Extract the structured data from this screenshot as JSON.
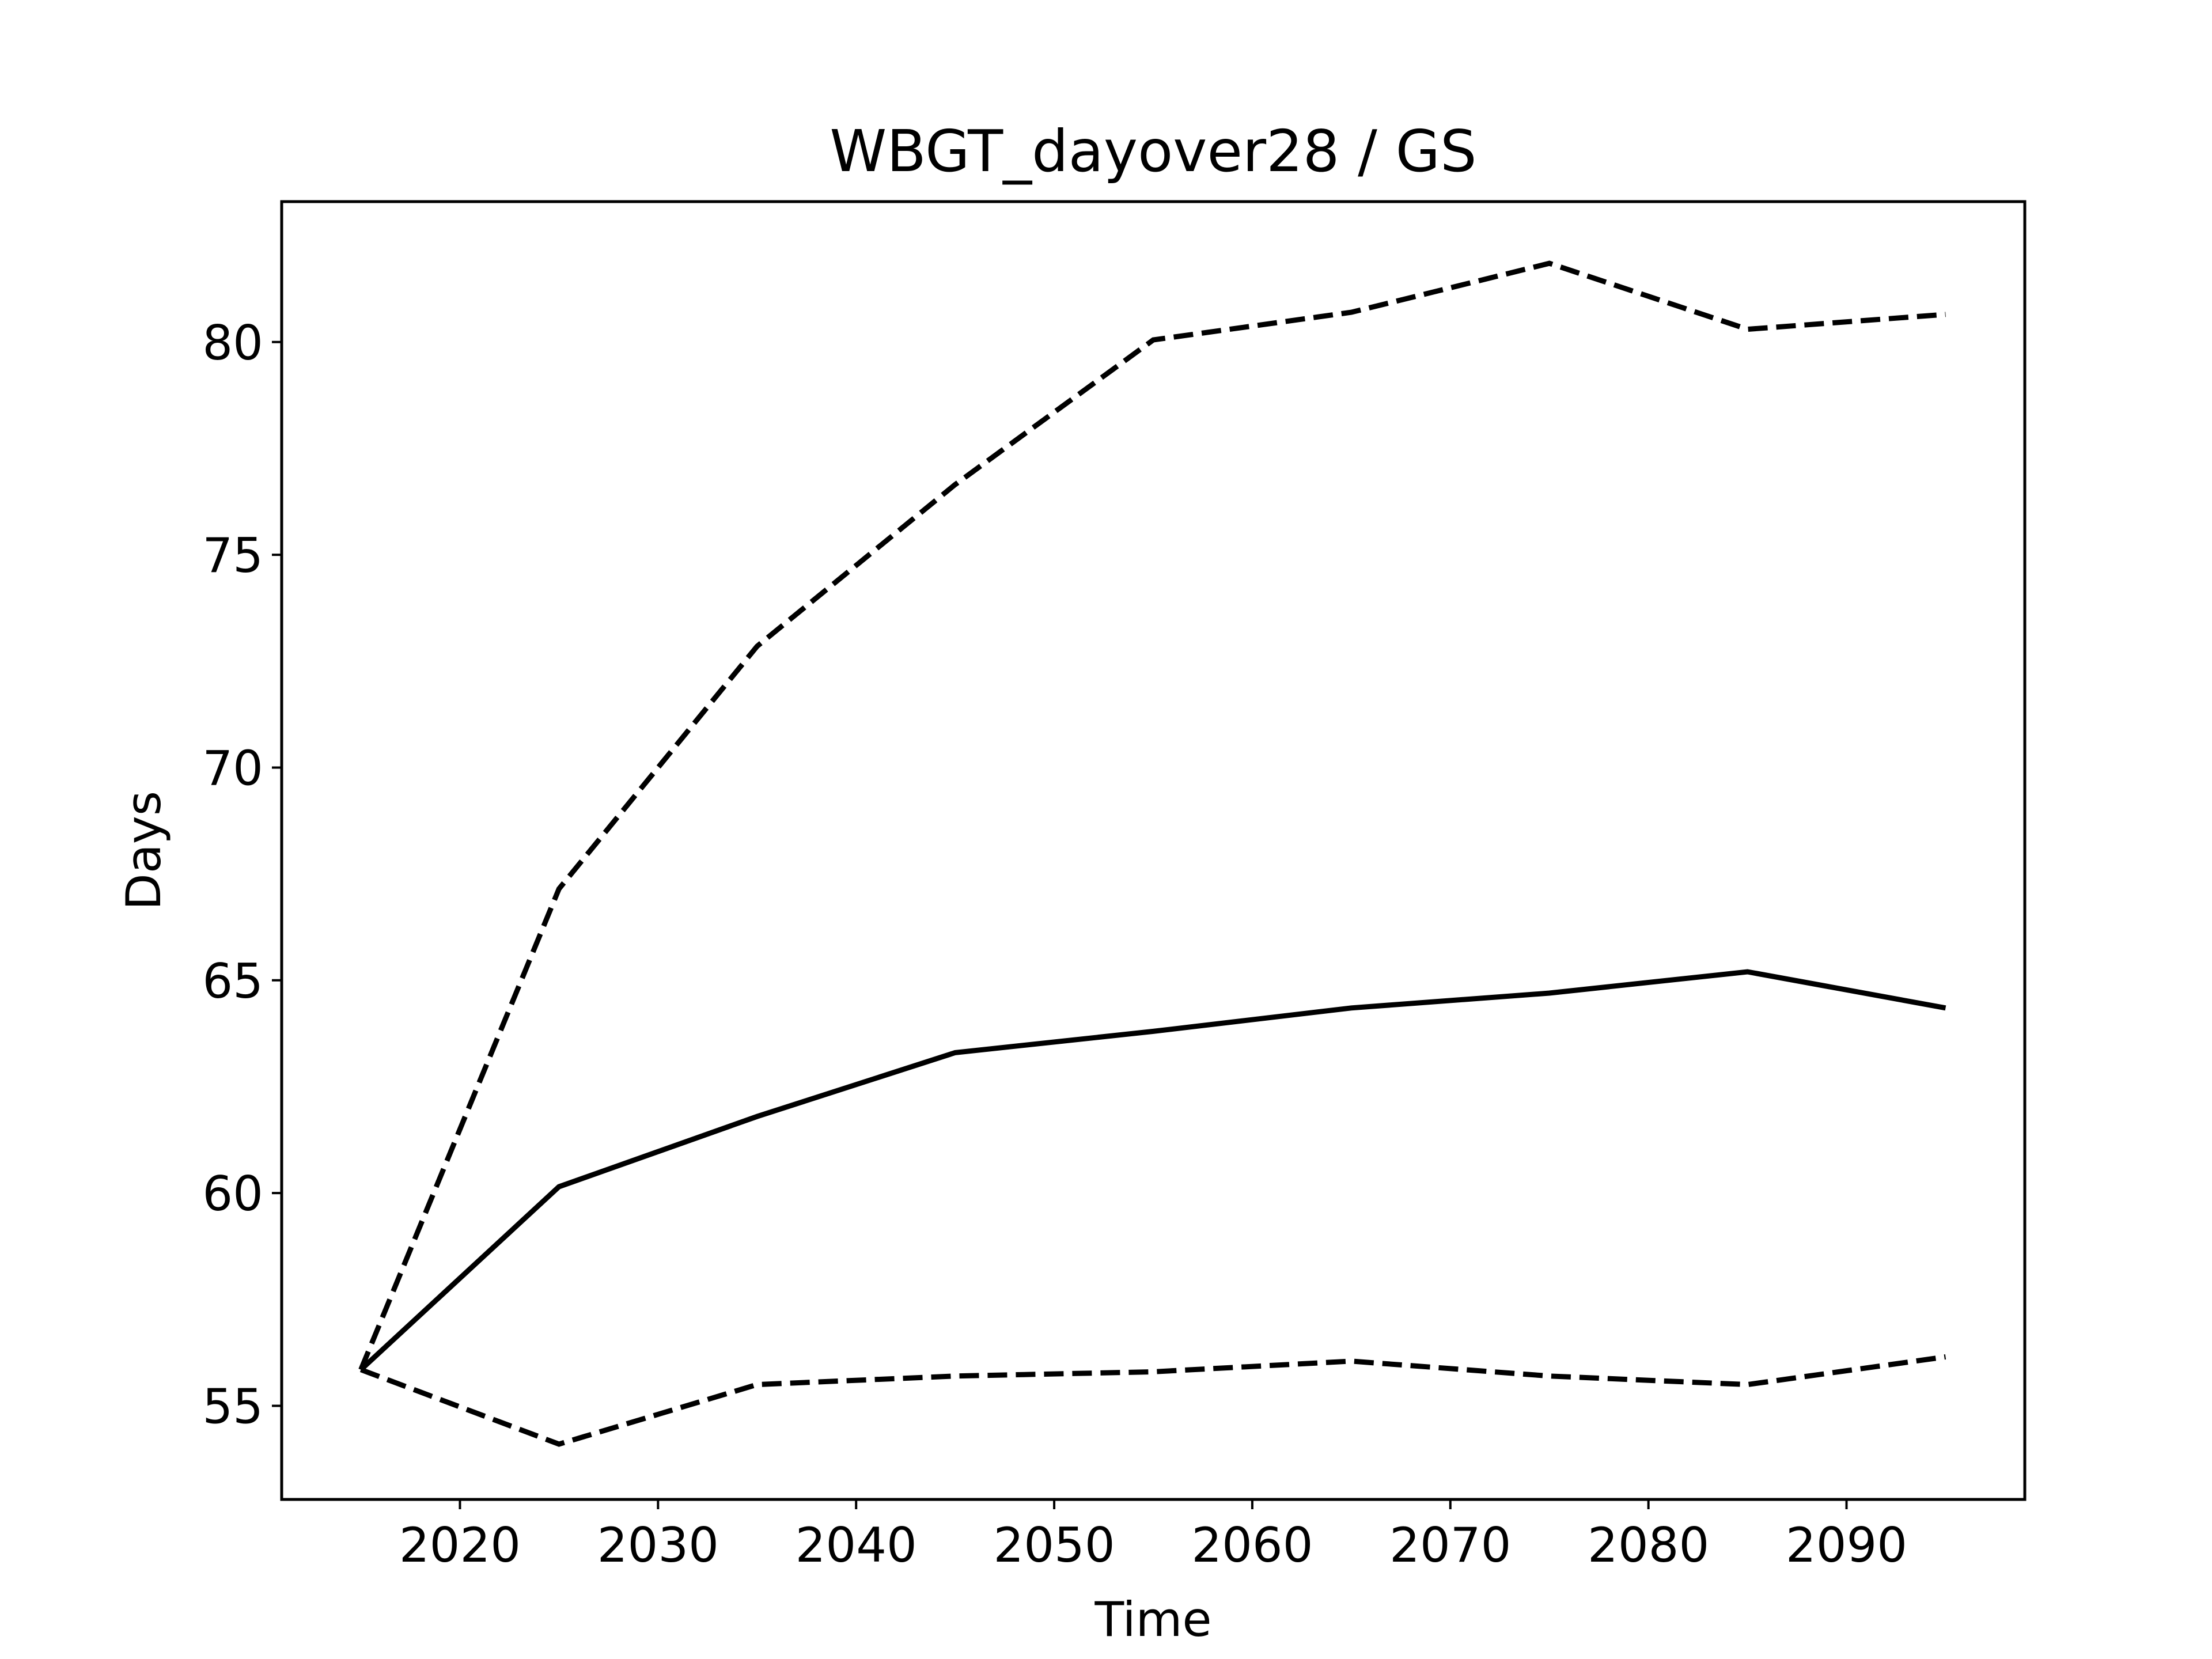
{
  "chart_data": {
    "type": "line",
    "title": "WBGT_dayover28 / GS",
    "xlabel": "Time",
    "ylabel": "Days",
    "xlim": [
      2011,
      2099
    ],
    "ylim": [
      52.8,
      83.3
    ],
    "xticks": [
      2020,
      2030,
      2040,
      2050,
      2060,
      2070,
      2080,
      2090
    ],
    "yticks": [
      55,
      60,
      65,
      70,
      75,
      80
    ],
    "grid": false,
    "legend": "none",
    "x": [
      2015,
      2025,
      2035,
      2045,
      2055,
      2065,
      2075,
      2085,
      2095
    ],
    "series": [
      {
        "values": [
          55.85,
          60.15,
          61.8,
          63.3,
          63.8,
          64.35,
          64.7,
          65.2,
          64.35
        ],
        "style": "solid",
        "color": "#000000"
      },
      {
        "values": [
          55.85,
          67.15,
          72.85,
          76.65,
          80.05,
          80.7,
          81.85,
          80.3,
          80.65
        ],
        "style": "dashed",
        "color": "#000000"
      },
      {
        "values": [
          55.85,
          54.1,
          55.5,
          55.7,
          55.8,
          56.05,
          55.7,
          55.5,
          56.15
        ],
        "style": "dashed",
        "color": "#000000"
      }
    ]
  }
}
